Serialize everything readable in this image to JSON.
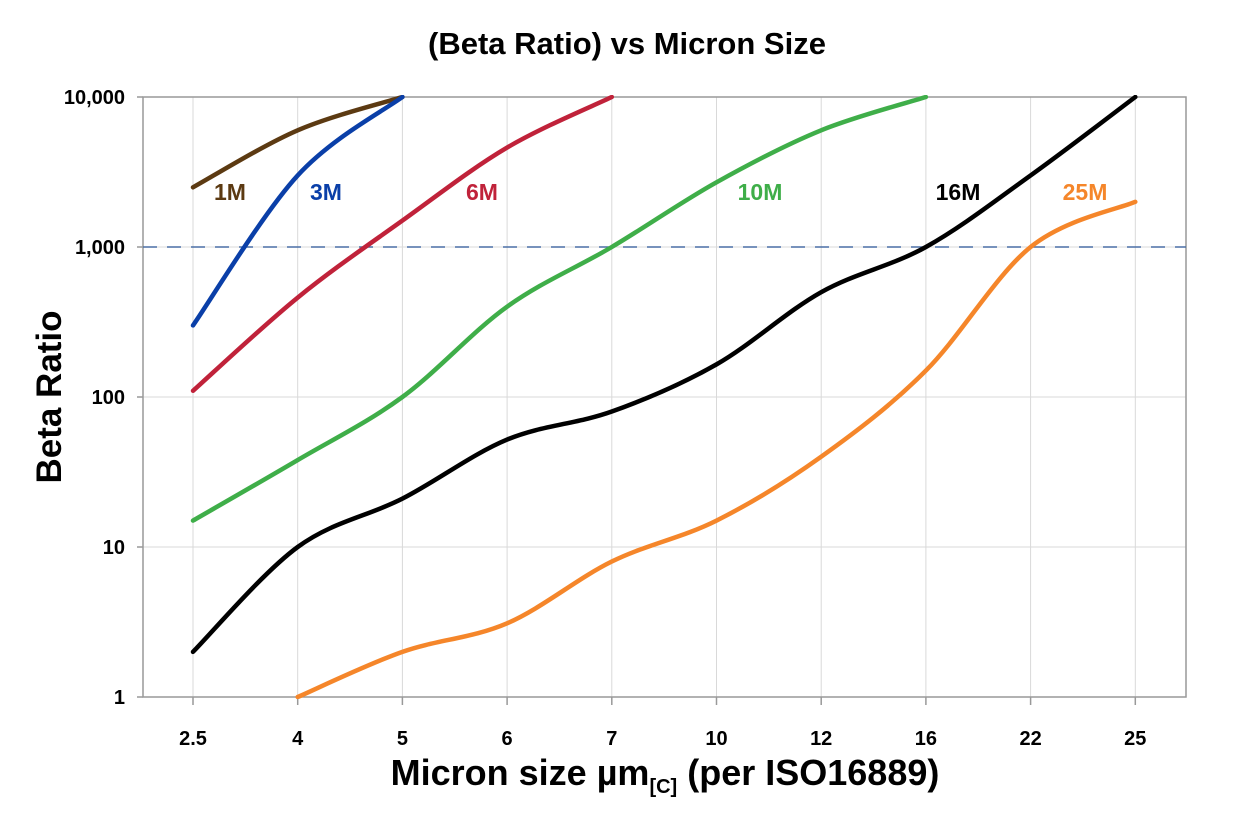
{
  "chart_data": {
    "type": "line",
    "title": "(Beta Ratio) vs Micron Size",
    "xlabel": "Micron size µm",
    "xlabel_subscript": "[C]",
    "xlabel_suffix": " (per ISO16889)",
    "ylabel": "Beta Ratio",
    "yscale": "log",
    "ylim": [
      1,
      10000
    ],
    "yticks": [
      "1",
      "10",
      "100",
      "1,000",
      "10,000"
    ],
    "categories": [
      "2.5",
      "4",
      "5",
      "6",
      "7",
      "10",
      "12",
      "16",
      "22",
      "25"
    ],
    "grid": true,
    "reference_line": {
      "y": 1000,
      "style": "dashed",
      "color": "#4a6fa5"
    },
    "series": [
      {
        "name": "1M",
        "color": "#5c3a12",
        "values": [
          2500,
          6000,
          10000,
          null,
          null,
          null,
          null,
          null,
          null,
          null
        ]
      },
      {
        "name": "3M",
        "color": "#0a3fa8",
        "values": [
          300,
          3000,
          10000,
          null,
          null,
          null,
          null,
          null,
          null,
          null
        ]
      },
      {
        "name": "6M",
        "color": "#c0223a",
        "values": [
          110,
          460,
          1500,
          4600,
          10000,
          null,
          null,
          null,
          null,
          null
        ]
      },
      {
        "name": "10M",
        "color": "#3fae49",
        "values": [
          15,
          38,
          100,
          400,
          1000,
          2700,
          6000,
          10000,
          null,
          null
        ]
      },
      {
        "name": "16M",
        "color": "#000000",
        "values": [
          2,
          10,
          21,
          52,
          80,
          165,
          500,
          1000,
          3000,
          10000
        ]
      },
      {
        "name": "25M",
        "color": "#f5862a",
        "values": [
          null,
          1,
          2,
          3.1,
          8,
          15,
          40,
          150,
          1000,
          2000
        ]
      }
    ]
  }
}
